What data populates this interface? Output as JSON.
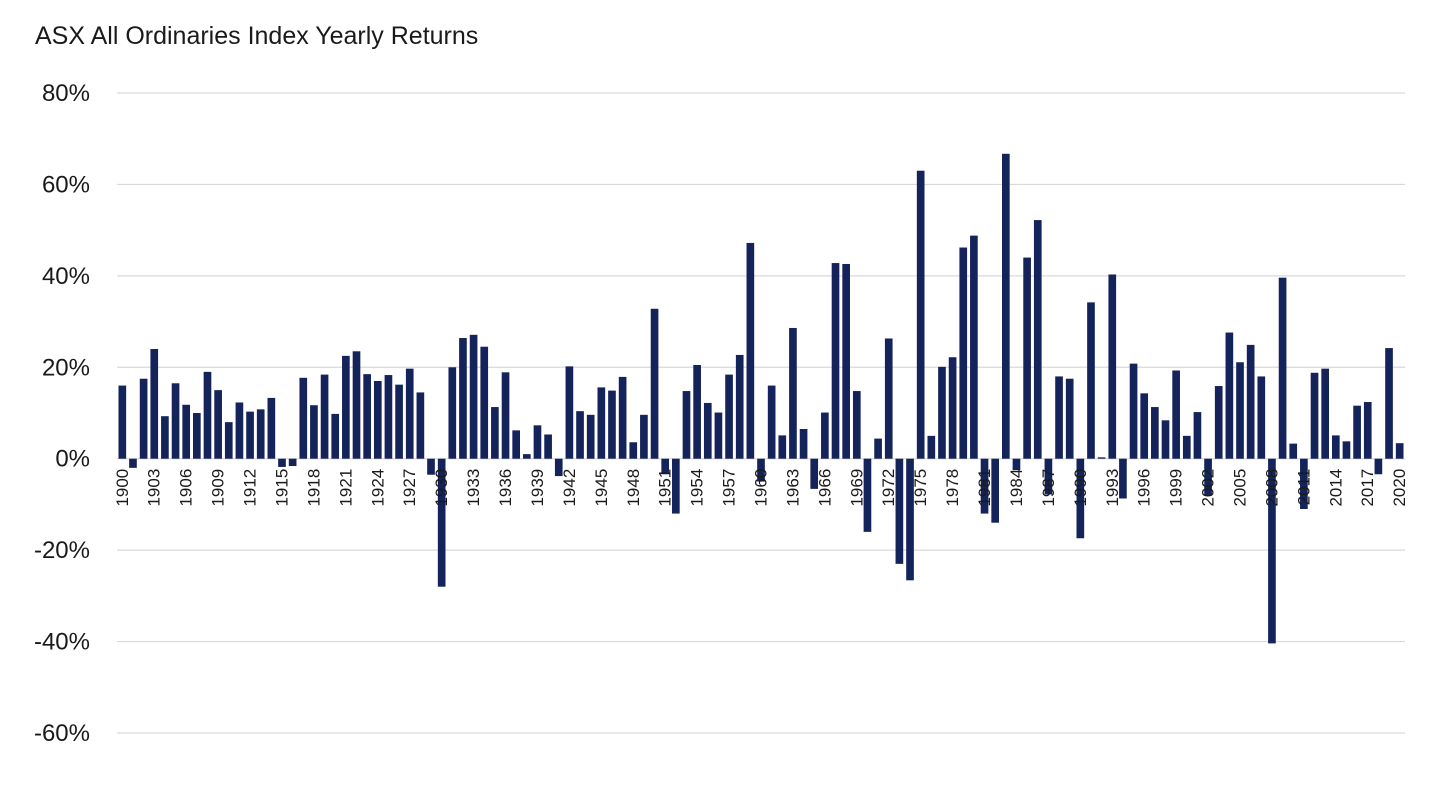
{
  "chart_data": {
    "type": "bar",
    "title": "ASX All Ordinaries Index Yearly Returns",
    "xlabel": "",
    "ylabel": "",
    "ylim": [
      -60,
      80
    ],
    "y_ticks": [
      80,
      60,
      40,
      20,
      0,
      -20,
      -40,
      -60
    ],
    "y_tick_labels": [
      "80%",
      "60%",
      "40%",
      "20%",
      "0%",
      "-20%",
      "-40%",
      "-60%"
    ],
    "grid": true,
    "legend": "none",
    "bar_color": "#14235a",
    "categories": [
      1900,
      1901,
      1902,
      1903,
      1904,
      1905,
      1906,
      1907,
      1908,
      1909,
      1910,
      1911,
      1912,
      1913,
      1914,
      1915,
      1916,
      1917,
      1918,
      1919,
      1920,
      1921,
      1922,
      1923,
      1924,
      1925,
      1926,
      1927,
      1928,
      1929,
      1930,
      1931,
      1932,
      1933,
      1934,
      1935,
      1936,
      1937,
      1938,
      1939,
      1940,
      1941,
      1942,
      1943,
      1944,
      1945,
      1946,
      1947,
      1948,
      1949,
      1950,
      1951,
      1952,
      1953,
      1954,
      1955,
      1956,
      1957,
      1958,
      1959,
      1960,
      1961,
      1962,
      1963,
      1964,
      1965,
      1966,
      1967,
      1968,
      1969,
      1970,
      1971,
      1972,
      1973,
      1974,
      1975,
      1976,
      1977,
      1978,
      1979,
      1980,
      1981,
      1982,
      1983,
      1984,
      1985,
      1986,
      1987,
      1988,
      1989,
      1990,
      1991,
      1992,
      1993,
      1994,
      1995,
      1996,
      1997,
      1998,
      1999,
      2000,
      2001,
      2002,
      2003,
      2004,
      2005,
      2006,
      2007,
      2008,
      2009,
      2010,
      2011,
      2012,
      2013,
      2014,
      2015,
      2016,
      2017,
      2018,
      2019,
      2020
    ],
    "x_tick_labels": [
      "1900",
      "1903",
      "1906",
      "1909",
      "1912",
      "1915",
      "1918",
      "1921",
      "1924",
      "1927",
      "1930",
      "1933",
      "1936",
      "1939",
      "1942",
      "1945",
      "1948",
      "1951",
      "1954",
      "1957",
      "1960",
      "1963",
      "1966",
      "1969",
      "1972",
      "1975",
      "1978",
      "1981",
      "1984",
      "1987",
      "1990",
      "1993",
      "1996",
      "1999",
      "2002",
      "2005",
      "2008",
      "2011",
      "2014",
      "2017",
      "2020"
    ],
    "values": [
      16,
      -2,
      17.5,
      24,
      9.3,
      16.5,
      11.8,
      10,
      19,
      15,
      8,
      12.3,
      10.3,
      10.8,
      13.3,
      -1.8,
      -1.6,
      17.7,
      11.7,
      18.4,
      9.8,
      22.5,
      23.5,
      18.5,
      17,
      18.3,
      16.2,
      19.7,
      14.5,
      -3.5,
      -28,
      20,
      26.4,
      27.1,
      24.5,
      11.3,
      18.9,
      6.2,
      1,
      7.3,
      5.3,
      -3.8,
      20.2,
      10.4,
      9.6,
      15.6,
      14.9,
      17.9,
      3.6,
      9.6,
      32.8,
      -3.4,
      -12,
      14.8,
      20.5,
      12.2,
      10.1,
      18.4,
      22.7,
      47.2,
      -5,
      16,
      5.1,
      28.6,
      6.5,
      -6.6,
      10.1,
      42.8,
      42.6,
      14.8,
      -16,
      4.4,
      26.3,
      -23,
      -26.6,
      63,
      5,
      20.1,
      22.2,
      46.2,
      48.8,
      -12,
      -14,
      66.7,
      -2.5,
      44,
      52.2,
      -7.8,
      18,
      17.5,
      -17.4,
      34.2,
      0.3,
      40.3,
      -8.7,
      20.8,
      14.3,
      11.3,
      8.4,
      19.3,
      5,
      10.2,
      -8.1,
      15.9,
      27.6,
      21.1,
      24.9,
      18,
      -40.4,
      39.6,
      3.3,
      -11,
      18.8,
      19.7,
      5.1,
      3.8,
      11.6,
      12.4,
      -3.4,
      24.2,
      3.4
    ]
  }
}
